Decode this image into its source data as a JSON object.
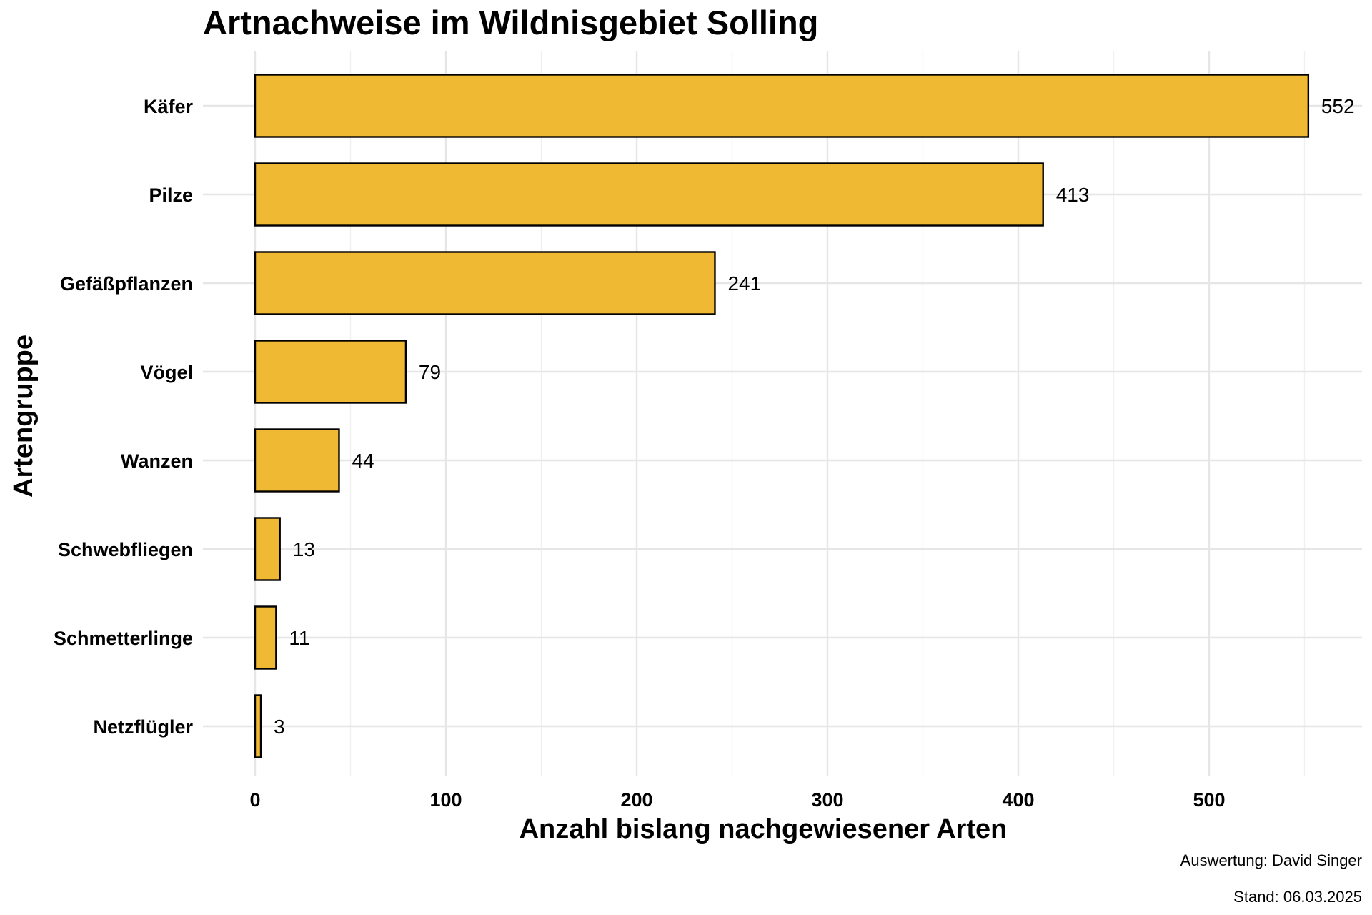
{
  "chart_data": {
    "type": "bar",
    "orientation": "horizontal",
    "title": "Artnachweise im Wildnisgebiet Solling",
    "xlabel": "Anzahl bislang nachgewiesener Arten",
    "ylabel": "Artengruppe",
    "categories": [
      "Käfer",
      "Pilze",
      "Gefäßpflanzen",
      "Vögel",
      "Wanzen",
      "Schwebfliegen",
      "Schmetterlinge",
      "Netzflügler"
    ],
    "values": [
      552,
      413,
      241,
      79,
      44,
      13,
      11,
      3
    ],
    "value_labels": [
      "552",
      "413",
      "241",
      "79",
      "44",
      "13",
      "11",
      "3"
    ],
    "xticks": [
      0,
      100,
      200,
      300,
      400,
      500
    ],
    "xtick_labels": [
      "0",
      "100",
      "200",
      "300",
      "400",
      "500"
    ],
    "xlim": [
      0,
      580
    ],
    "grid": true,
    "legend": "none",
    "bar_color": "#f0b934",
    "bar_outline": "#000000",
    "captions": [
      "Auswertung: David Singer",
      "Stand: 06.03.2025"
    ]
  }
}
